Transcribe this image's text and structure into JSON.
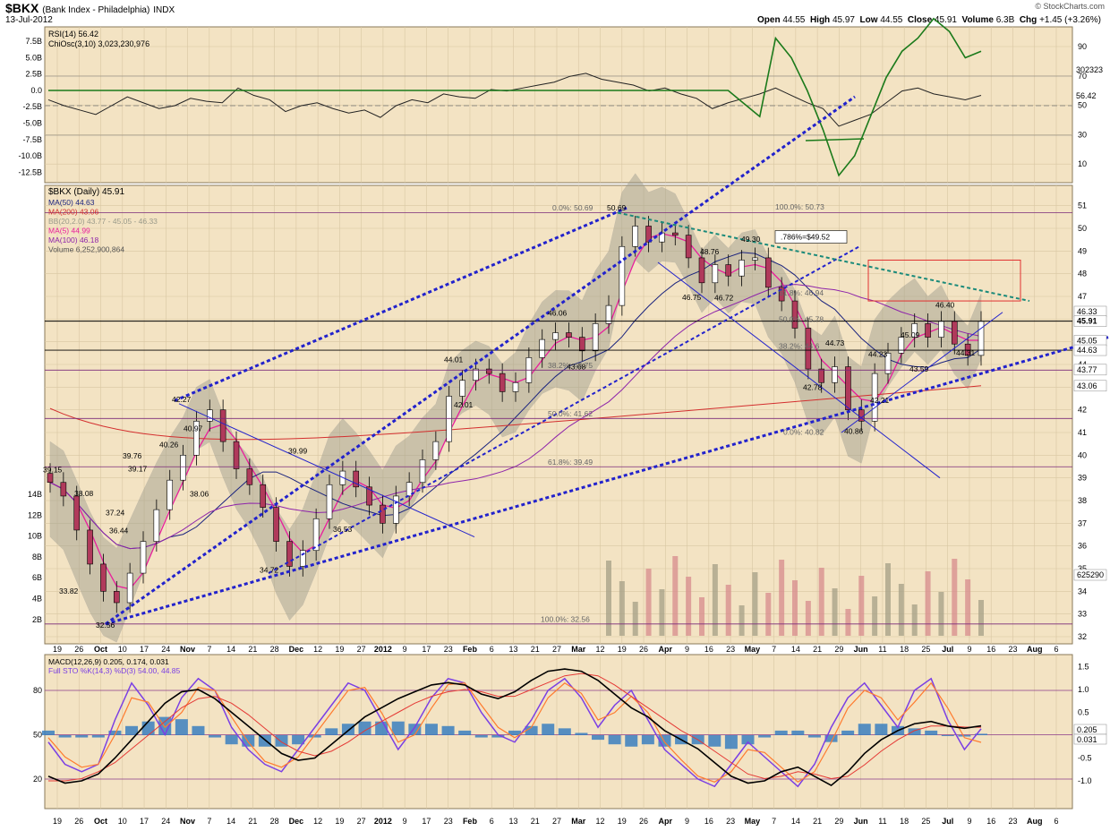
{
  "header": {
    "symbol": "$BKX",
    "name": "(Bank Index - Philadelphia)",
    "exchange": "INDX",
    "date": "13-Jul-2012",
    "quote": {
      "open_label": "Open",
      "open": "44.55",
      "high_label": "High",
      "high": "45.97",
      "low_label": "Low",
      "low": "44.55",
      "close_label": "Close",
      "close": "45.91",
      "volume_label": "Volume",
      "volume": "6.3B",
      "chg_label": "Chg",
      "chg": "+1.45 (+3.26%)"
    },
    "credit": "© StockCharts.com"
  },
  "colors": {
    "panel_bg": "#f3e3c3",
    "grid": "#d8c6a2",
    "up": "#ffffff",
    "down": "#b03a5b",
    "trendline": "#2222cc",
    "ma50": "#1a237e",
    "ma200": "#d32f2f",
    "ma5": "#e91e9c",
    "ma100": "#8e24aa",
    "band": "#9a9a8a",
    "rsi": "#222222",
    "chiosc": "#1b7a1b",
    "macd": "#000000",
    "signal": "#e53935",
    "hist": "#3a7fc0",
    "stok": "#7b3fe4",
    "stod": "#ff7b2e"
  },
  "chart_data": [
    {
      "panel": "indicator-top",
      "type": "line",
      "legend": [
        "RSI(14) 56.42",
        "ChiOsc(3,10) 3,023,230,976"
      ],
      "left_ticks": [
        "7.5B",
        "5.0B",
        "2.5B",
        "0.0",
        "-2.5B",
        "-5.0B",
        "-7.5B",
        "-10.0B",
        "-12.5B"
      ],
      "right_ticks": [
        "90",
        "70",
        "50",
        "30",
        "10"
      ],
      "right_labels": [
        "302323",
        "56.42"
      ],
      "series": [
        {
          "name": "RSI(14)",
          "values": [
            54,
            50,
            47,
            44,
            50,
            56,
            52,
            48,
            50,
            55,
            53,
            52,
            62,
            57,
            54,
            46,
            50,
            52,
            48,
            45,
            47,
            42,
            50,
            54,
            52,
            58,
            56,
            55,
            61,
            60,
            62,
            64,
            66,
            70,
            72,
            68,
            66,
            64,
            60,
            62,
            58,
            55,
            48,
            52,
            55,
            58,
            62,
            57,
            52,
            48,
            36,
            40,
            44,
            52,
            60,
            62,
            58,
            56,
            54,
            57
          ]
        },
        {
          "name": "ChiOsc(3,10)",
          "values": [
            0,
            0,
            0,
            0,
            0,
            0,
            0,
            0,
            0,
            0,
            0,
            0,
            0,
            0,
            0,
            0,
            0,
            0,
            0,
            0,
            0,
            0,
            0,
            0,
            0,
            0,
            0,
            0,
            0,
            0,
            0,
            0,
            0,
            0,
            0,
            0,
            0,
            0,
            0,
            0,
            0,
            0,
            0,
            0,
            -2,
            -4,
            8,
            5,
            0,
            -6,
            -13,
            -10,
            -4,
            2,
            6,
            8,
            11,
            9,
            5,
            6
          ]
        }
      ]
    },
    {
      "panel": "price",
      "type": "candlestick",
      "title": "$BKX (Daily) 45.91",
      "legend": [
        "MA(50) 44.63",
        "MA(200) 43.06",
        "BB(20,2.0) 43.77 - 45.05 - 46.33",
        "MA(5) 44.99",
        "MA(100) 46.18",
        "Volume 6,252,900,864"
      ],
      "ylim": [
        32,
        51.5
      ],
      "right_ticks": [
        "51",
        "50",
        "49",
        "48",
        "47",
        "46",
        "45",
        "44",
        "43",
        "42",
        "41",
        "40",
        "39",
        "38",
        "37",
        "36",
        "35",
        "34",
        "33",
        "32"
      ],
      "volume_ticks": [
        "14B",
        "12B",
        "10B",
        "8B",
        "6B",
        "4B",
        "2B"
      ],
      "right_labels": [
        "46.33",
        "45.91",
        "45.05",
        "44.63",
        "43.77",
        "43.06",
        "625290"
      ],
      "x_ticks": [
        "19",
        "26",
        "Oct",
        "10",
        "17",
        "24",
        "Nov",
        "7",
        "14",
        "21",
        "28",
        "Dec",
        "12",
        "19",
        "27",
        "2012",
        "9",
        "17",
        "23",
        "Feb",
        "6",
        "13",
        "21",
        "27",
        "Mar",
        "12",
        "19",
        "26",
        "Apr",
        "9",
        "16",
        "23",
        "May",
        "7",
        "14",
        "21",
        "29",
        "Jun",
        "11",
        "18",
        "25",
        "Jul",
        "9",
        "16",
        "23",
        "Aug",
        "6"
      ],
      "price_labels": [
        "39.15",
        "38.08",
        "37.24",
        "36.44",
        "33.82",
        "32.56",
        "39.76",
        "39.17",
        "40.26",
        "42.27",
        "40.97",
        "38.06",
        "39.99",
        "34.72",
        "36.53",
        "44.01",
        "42.01",
        "46.06",
        "43.68",
        "50.69",
        "48.76",
        "49.30",
        "46.75",
        "46.72",
        "44.73",
        "42.78",
        "44.23",
        "42.21",
        "40.86",
        "45.09",
        "46.40",
        "43.59",
        "44.31"
      ],
      "fib_labels": [
        "0.0%: 50.69",
        "38.2%: 43.75",
        "50.0%: 41.62",
        "61.8%: 39.49",
        "100.0%: 32.56",
        "100.0%: 50.73",
        "61.8%: 46.94",
        "50.0%: 45.78",
        "38.2%: 44.6",
        "0.0%: 40.82"
      ],
      "callout": ".786%=$49.52",
      "closes": [
        38.8,
        38.2,
        36.7,
        35.2,
        34.0,
        33.5,
        34.8,
        36.2,
        37.6,
        38.9,
        40.0,
        41.5,
        42.0,
        40.6,
        39.4,
        38.7,
        37.7,
        36.2,
        35.1,
        35.8,
        37.2,
        38.7,
        39.3,
        38.6,
        37.8,
        37.0,
        38.2,
        38.8,
        39.8,
        40.6,
        42.6,
        43.3,
        43.8,
        43.6,
        42.8,
        43.2,
        44.3,
        45.1,
        45.4,
        45.2,
        44.6,
        45.8,
        46.6,
        49.2,
        50.1,
        49.4,
        49.8,
        49.7,
        48.7,
        47.6,
        48.4,
        47.9,
        48.6,
        48.7,
        47.4,
        46.8,
        45.6,
        43.8,
        43.2,
        43.9,
        42.0,
        41.5,
        43.6,
        44.5,
        45.2,
        45.8,
        45.2,
        45.9,
        44.9,
        44.4,
        45.9
      ]
    },
    {
      "panel": "indicator-bottom",
      "type": "line",
      "legend": [
        "MACD(12,26,9) 0.205, 0.174, 0.031",
        "Full STO %K(14,3) %D(3) 54.00, 44.85"
      ],
      "left_ticks": [
        "80",
        "50",
        "20"
      ],
      "right_ticks": [
        "1.5",
        "1.0",
        "0.5",
        "-0.5",
        "-1.0"
      ],
      "right_labels": [
        "0.205",
        "0.031"
      ],
      "x_ticks": [
        "19",
        "26",
        "Oct",
        "10",
        "17",
        "24",
        "Nov",
        "7",
        "14",
        "21",
        "28",
        "Dec",
        "12",
        "19",
        "27",
        "2012",
        "9",
        "17",
        "23",
        "Feb",
        "6",
        "13",
        "21",
        "27",
        "Mar",
        "12",
        "19",
        "26",
        "Apr",
        "9",
        "16",
        "23",
        "May",
        "7",
        "14",
        "21",
        "29",
        "Jun",
        "11",
        "18",
        "25",
        "Jul",
        "9",
        "16",
        "23",
        "Aug",
        "6"
      ],
      "series": [
        {
          "name": "MACD",
          "values": [
            -0.9,
            -1.05,
            -1.0,
            -0.85,
            -0.5,
            -0.1,
            0.3,
            0.7,
            0.95,
            1.0,
            0.8,
            0.5,
            0.2,
            -0.1,
            -0.4,
            -0.55,
            -0.5,
            -0.2,
            0.1,
            0.4,
            0.6,
            0.8,
            0.95,
            1.1,
            1.15,
            1.1,
            0.9,
            0.8,
            0.95,
            1.2,
            1.4,
            1.45,
            1.4,
            1.2,
            0.9,
            0.6,
            0.4,
            0.1,
            -0.1,
            -0.3,
            -0.6,
            -0.9,
            -1.05,
            -1.0,
            -0.8,
            -0.7,
            -0.9,
            -1.1,
            -0.8,
            -0.4,
            -0.1,
            0.1,
            0.25,
            0.3,
            0.2,
            0.15,
            0.205
          ]
        },
        {
          "name": "Signal",
          "values": [
            -1.0,
            -1.0,
            -0.95,
            -0.8,
            -0.6,
            -0.3,
            0.0,
            0.3,
            0.6,
            0.8,
            0.85,
            0.7,
            0.45,
            0.15,
            -0.15,
            -0.35,
            -0.45,
            -0.35,
            -0.15,
            0.1,
            0.3,
            0.5,
            0.7,
            0.85,
            0.95,
            1.0,
            0.95,
            0.85,
            0.85,
            1.0,
            1.15,
            1.3,
            1.35,
            1.3,
            1.1,
            0.85,
            0.6,
            0.35,
            0.1,
            -0.1,
            -0.35,
            -0.6,
            -0.85,
            -0.95,
            -0.9,
            -0.8,
            -0.85,
            -0.95,
            -0.9,
            -0.65,
            -0.35,
            -0.1,
            0.1,
            0.2,
            0.2,
            0.18,
            0.174
          ]
        },
        {
          "name": "%K",
          "values": [
            45,
            30,
            25,
            30,
            60,
            85,
            70,
            50,
            75,
            88,
            80,
            55,
            40,
            30,
            25,
            40,
            55,
            70,
            85,
            80,
            60,
            40,
            55,
            75,
            88,
            85,
            65,
            50,
            45,
            60,
            80,
            88,
            75,
            55,
            70,
            80,
            60,
            40,
            30,
            20,
            15,
            30,
            45,
            35,
            25,
            15,
            30,
            55,
            75,
            85,
            70,
            55,
            80,
            88,
            60,
            40,
            54
          ]
        },
        {
          "name": "%D",
          "values": [
            48,
            35,
            28,
            30,
            50,
            75,
            72,
            55,
            65,
            82,
            80,
            62,
            45,
            32,
            28,
            35,
            50,
            65,
            80,
            82,
            65,
            45,
            50,
            68,
            84,
            85,
            70,
            55,
            48,
            55,
            75,
            85,
            78,
            60,
            65,
            76,
            65,
            45,
            33,
            22,
            18,
            25,
            40,
            38,
            28,
            18,
            25,
            45,
            68,
            80,
            75,
            60,
            72,
            85,
            68,
            48,
            44.85
          ]
        },
        {
          "name": "Histogram",
          "values": [
            0.1,
            -0.05,
            -0.05,
            -0.05,
            0.1,
            0.2,
            0.3,
            0.4,
            0.35,
            0.2,
            -0.05,
            -0.2,
            -0.25,
            -0.25,
            -0.25,
            -0.2,
            -0.05,
            0.15,
            0.25,
            0.3,
            0.3,
            0.3,
            0.25,
            0.25,
            0.2,
            0.1,
            -0.05,
            -0.05,
            0.1,
            0.2,
            0.25,
            0.15,
            0.05,
            -0.1,
            -0.2,
            -0.25,
            -0.2,
            -0.25,
            -0.2,
            -0.2,
            -0.25,
            -0.3,
            -0.2,
            -0.05,
            0.1,
            0.1,
            -0.05,
            -0.15,
            0.1,
            0.25,
            0.25,
            0.2,
            0.15,
            0.1,
            0.0,
            -0.03,
            0.031
          ]
        }
      ]
    }
  ]
}
